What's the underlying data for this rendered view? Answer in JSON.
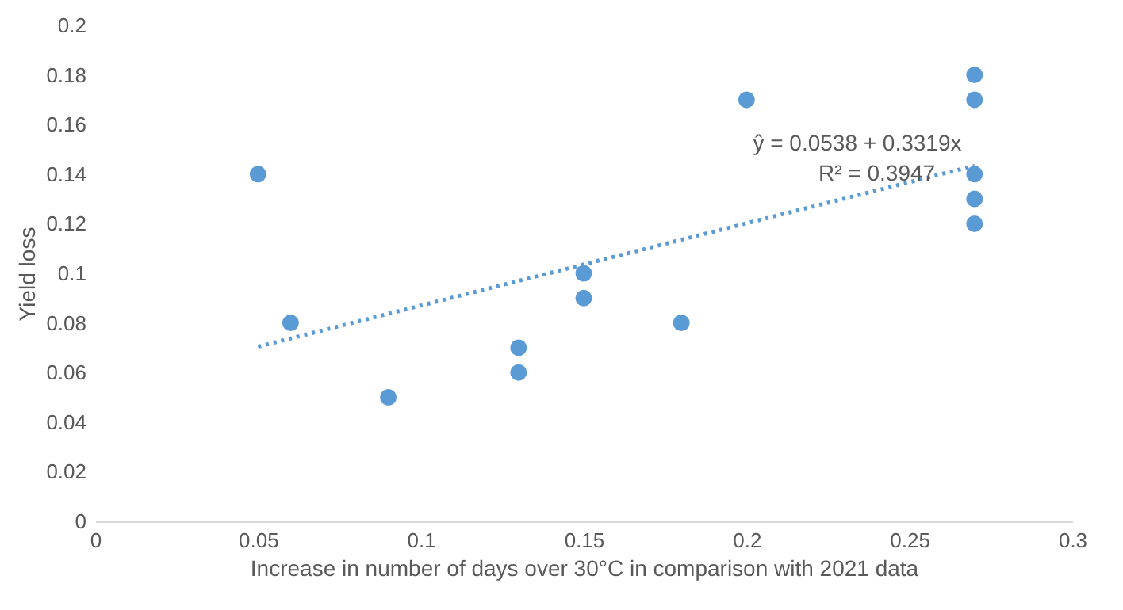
{
  "chart_data": {
    "type": "scatter",
    "xlabel": "Increase in number of days over 30°C in comparison with 2021 data",
    "ylabel": "Yield loss",
    "xlim": [
      0,
      0.3
    ],
    "xticks": [
      0,
      0.05,
      0.1,
      0.15,
      0.2,
      0.25,
      0.3
    ],
    "ylim": [
      0,
      0.2
    ],
    "yticks": [
      0,
      0.02,
      0.04,
      0.06,
      0.08,
      0.1,
      0.12,
      0.14,
      0.16,
      0.18,
      0.2
    ],
    "grid": false,
    "marker": "circle",
    "series": [
      {
        "color": "#5b9bd5",
        "x": [
          0.05,
          0.06,
          0.09,
          0.13,
          0.13,
          0.15,
          0.15,
          0.18,
          0.2,
          0.27,
          0.27,
          0.27,
          0.27,
          0.27
        ],
        "values": [
          0.14,
          0.08,
          0.05,
          0.07,
          0.06,
          0.1,
          0.09,
          0.08,
          0.17,
          0.18,
          0.17,
          0.14,
          0.13,
          0.12
        ]
      },
      {
        "type": "line",
        "color": "#5b9bd5",
        "line_style": "dotted",
        "marker": "none",
        "x": [
          0.05,
          0.27
        ],
        "values": [
          0.0704,
          0.1434
        ]
      }
    ],
    "annotations": [
      "ŷ = 0.0538 + 0.3319x",
      "R² = 0.3947"
    ]
  }
}
